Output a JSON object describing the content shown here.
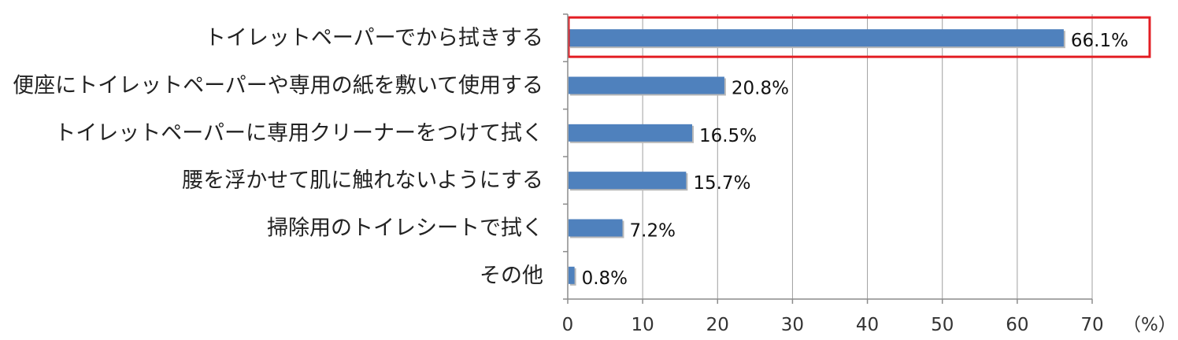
{
  "chart_data": {
    "type": "bar",
    "orientation": "horizontal",
    "categories": [
      "トイレットペーパーでから拭きする",
      "便座にトイレットペーパーや専用の紙を敷いて使用する",
      "トイレットペーパーに専用クリーナーをつけて拭く",
      "腰を浮かせて肌に触れないようにする",
      "掃除用のトイレシートで拭く",
      "その他"
    ],
    "values": [
      66.1,
      20.8,
      16.5,
      15.7,
      7.2,
      0.8
    ],
    "data_labels": [
      "66.1%",
      "20.8%",
      "16.5%",
      "15.7%",
      "7.2%",
      "0.8%"
    ],
    "xlim": [
      0,
      70
    ],
    "ticks": [
      0,
      10,
      20,
      30,
      40,
      50,
      60,
      70
    ],
    "tick_labels": [
      "0",
      "10",
      "20",
      "30",
      "40",
      "50",
      "60",
      "70"
    ],
    "unit_label": "（%）",
    "grid": true,
    "highlighted_index": 0,
    "title": "",
    "xlabel": "",
    "ylabel": ""
  },
  "colors": {
    "bar": "#4f81bd",
    "highlight_box": "#e31e24",
    "grid": "#a0a0a0",
    "axis": "#8c8c8c"
  }
}
